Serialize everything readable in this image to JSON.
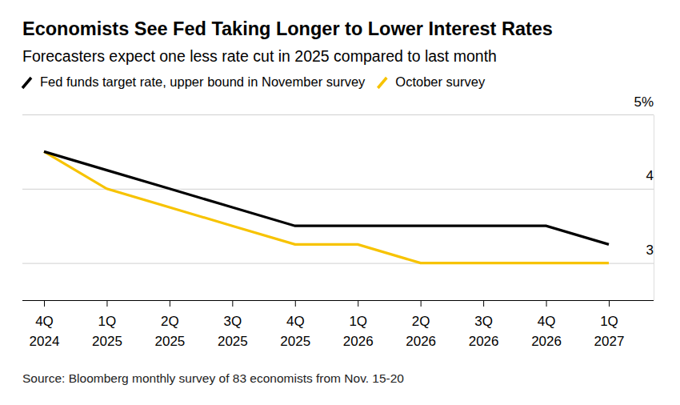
{
  "chart_data": {
    "type": "line",
    "title": "Economists See Fed Taking Longer to Lower Interest Rates",
    "subtitle": "Forecasters expect one less rate cut in 2025 compared to last month",
    "source": "Source: Bloomberg monthly survey of 83 economists from Nov. 15-20",
    "categories": [
      "4Q 2024",
      "1Q 2025",
      "2Q 2025",
      "3Q 2025",
      "4Q 2025",
      "1Q 2026",
      "2Q 2026",
      "3Q 2026",
      "4Q 2026",
      "1Q 2027"
    ],
    "series": [
      {
        "name": "Fed funds target rate, upper bound in November survey",
        "color": "#000000",
        "values": [
          4.5,
          4.25,
          4.0,
          3.75,
          3.5,
          3.5,
          3.5,
          3.5,
          3.5,
          3.25
        ]
      },
      {
        "name": "October survey",
        "color": "#f7c300",
        "values": [
          4.5,
          4.0,
          3.75,
          3.5,
          3.25,
          3.25,
          3.0,
          3.0,
          3.0,
          3.0
        ]
      }
    ],
    "ylim": [
      2.5,
      5
    ],
    "yticks": [
      {
        "value": 5,
        "label": "5%"
      },
      4,
      3
    ],
    "grid": true,
    "legend": "top-left"
  }
}
